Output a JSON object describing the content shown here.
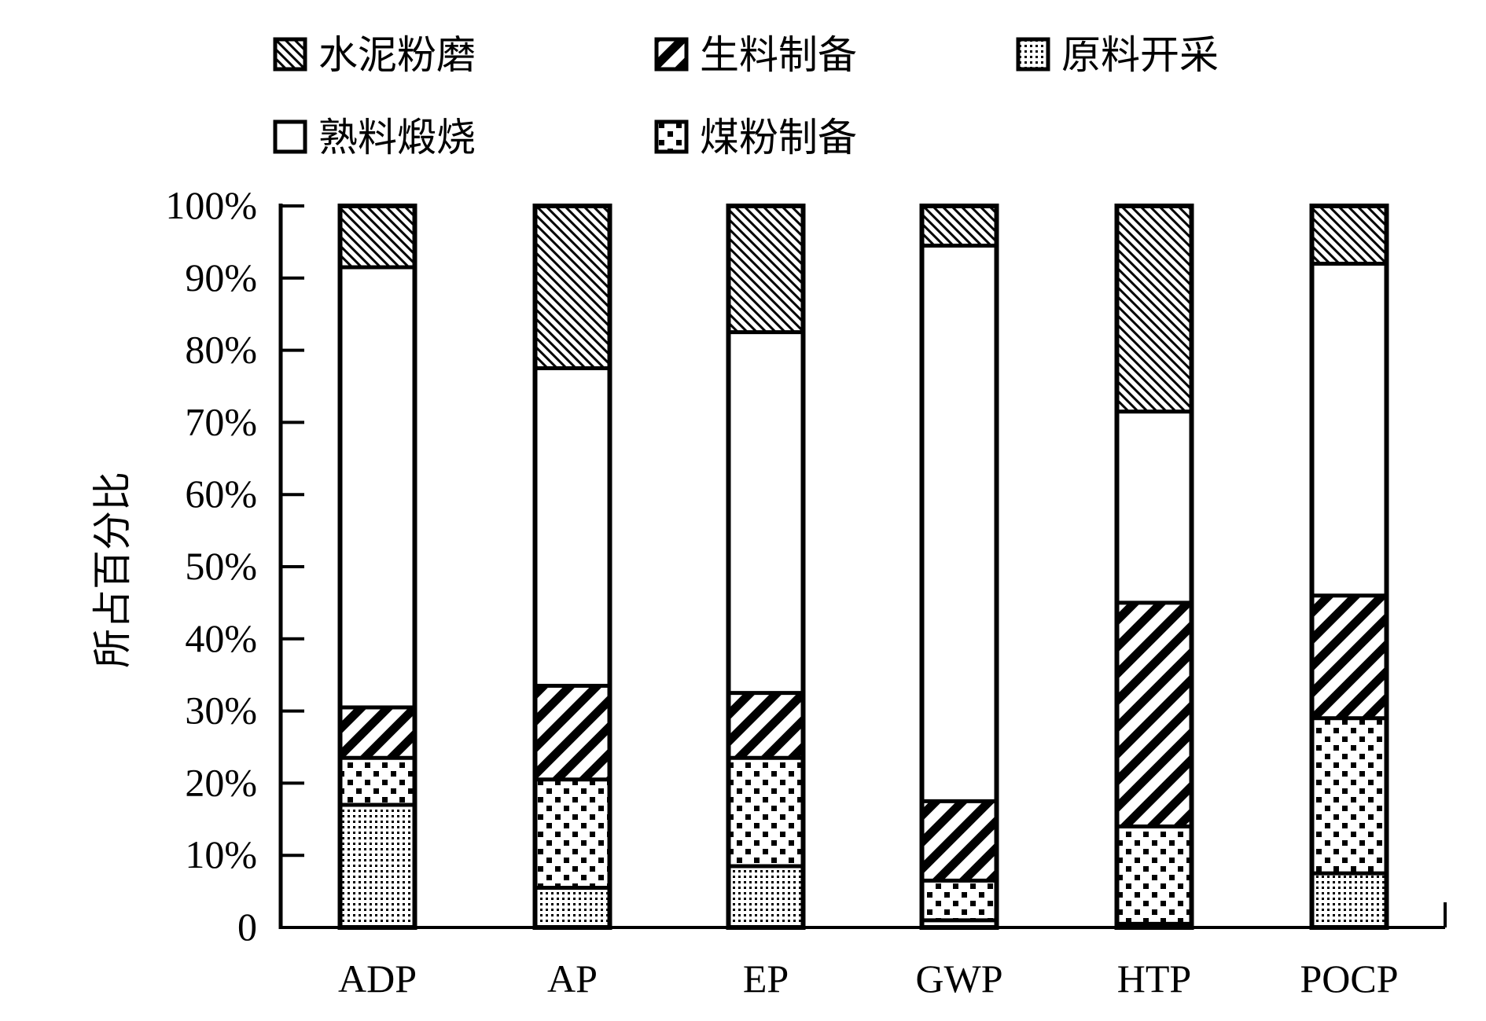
{
  "chart_data": {
    "type": "bar",
    "stacked": true,
    "title": "",
    "xlabel": "",
    "ylabel": "所占百分比",
    "ylim": [
      0,
      100
    ],
    "y_ticks": [
      "0",
      "10%",
      "20%",
      "30%",
      "40%",
      "50%",
      "60%",
      "70%",
      "80%",
      "90%",
      "100%"
    ],
    "categories": [
      "ADP",
      "AP",
      "EP",
      "GWP",
      "HTP",
      "POCP"
    ],
    "legend": {
      "placement": "top",
      "entries": [
        "水泥粉磨",
        "生料制备",
        "原料开采",
        "熟料煅烧",
        "煤粉制备"
      ]
    },
    "series": [
      {
        "name": "原料开采",
        "pattern": "fine-dots",
        "values": [
          17,
          5.5,
          8.5,
          1,
          0.5,
          7.5
        ]
      },
      {
        "name": "煤粉制备",
        "pattern": "coarse-squares",
        "values": [
          6.5,
          15,
          15,
          5.5,
          13.5,
          21.5
        ]
      },
      {
        "name": "生料制备",
        "pattern": "wide-diagonal",
        "values": [
          7,
          13,
          9,
          11,
          31,
          17
        ]
      },
      {
        "name": "熟料煅烧",
        "pattern": "white",
        "values": [
          61,
          44,
          50,
          77,
          26.5,
          46
        ]
      },
      {
        "name": "水泥粉磨",
        "pattern": "thin-diagonal",
        "values": [
          8.5,
          22.5,
          17.5,
          5.5,
          28.5,
          8
        ]
      }
    ]
  }
}
